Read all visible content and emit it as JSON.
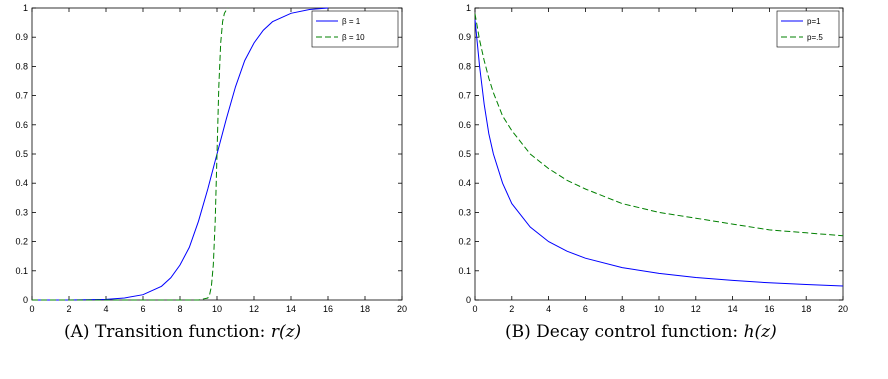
{
  "chart_data": [
    {
      "type": "line",
      "xlim": [
        0,
        20
      ],
      "ylim": [
        0,
        1
      ],
      "xticks": [
        "0",
        "2",
        "4",
        "6",
        "8",
        "10",
        "12",
        "14",
        "16",
        "18",
        "20"
      ],
      "yticks": [
        "0",
        "0.1",
        "0.2",
        "0.3",
        "0.4",
        "0.5",
        "0.6",
        "0.7",
        "0.8",
        "0.9",
        "1"
      ],
      "grid": false,
      "legend_position": "top-right",
      "series": [
        {
          "name": "β = 1",
          "color": "#0000ff",
          "dash": "solid",
          "x": [
            0,
            2,
            4,
            5,
            6,
            7,
            7.5,
            8,
            8.5,
            9,
            9.5,
            10,
            10.5,
            11,
            11.5,
            12,
            12.5,
            13,
            14,
            15,
            16
          ],
          "y": [
            0.0,
            0.0,
            0.002,
            0.007,
            0.018,
            0.047,
            0.076,
            0.12,
            0.18,
            0.27,
            0.38,
            0.5,
            0.62,
            0.73,
            0.82,
            0.88,
            0.924,
            0.953,
            0.982,
            0.995,
            1.0
          ]
        },
        {
          "name": "β = 10",
          "color": "#008000",
          "dash": "dashed",
          "x": [
            0,
            9,
            9.5,
            9.6,
            9.7,
            9.8,
            9.9,
            10,
            10.1,
            10.2,
            10.3,
            10.4,
            10.5,
            10.6
          ],
          "y": [
            0.0,
            0.0,
            0.007,
            0.018,
            0.047,
            0.12,
            0.27,
            0.5,
            0.73,
            0.88,
            0.953,
            0.982,
            0.993,
            1.0
          ]
        }
      ]
    },
    {
      "type": "line",
      "xlim": [
        0,
        20
      ],
      "ylim": [
        0,
        1
      ],
      "xticks": [
        "0",
        "2",
        "4",
        "6",
        "8",
        "10",
        "12",
        "14",
        "16",
        "18",
        "20"
      ],
      "yticks": [
        "0",
        "0.1",
        "0.2",
        "0.3",
        "0.4",
        "0.5",
        "0.6",
        "0.7",
        "0.8",
        "0.9",
        "1"
      ],
      "grid": false,
      "legend_position": "top-right",
      "series": [
        {
          "name": "p=1",
          "color": "#0000ff",
          "dash": "solid",
          "x": [
            0,
            0.25,
            0.5,
            0.75,
            1,
            1.5,
            2,
            3,
            4,
            5,
            6,
            8,
            10,
            12,
            14,
            16,
            18,
            20
          ],
          "y": [
            0.96,
            0.8,
            0.67,
            0.57,
            0.5,
            0.4,
            0.33,
            0.25,
            0.2,
            0.167,
            0.143,
            0.111,
            0.091,
            0.077,
            0.067,
            0.059,
            0.053,
            0.048
          ]
        },
        {
          "name": "p=.5",
          "color": "#008000",
          "dash": "dashed",
          "x": [
            0,
            0.25,
            0.5,
            0.75,
            1,
            1.5,
            2,
            3,
            4,
            5,
            6,
            8,
            10,
            12,
            14,
            16,
            18,
            20
          ],
          "y": [
            0.98,
            0.89,
            0.82,
            0.76,
            0.71,
            0.63,
            0.58,
            0.5,
            0.45,
            0.41,
            0.38,
            0.33,
            0.3,
            0.28,
            0.26,
            0.24,
            0.23,
            0.22
          ]
        }
      ]
    }
  ],
  "captions": [
    {
      "mark": "(A)",
      "text": "Transition function:",
      "formula": "r(z)"
    },
    {
      "mark": "(B)",
      "text": "Decay control function:",
      "formula": "h(z)"
    }
  ]
}
